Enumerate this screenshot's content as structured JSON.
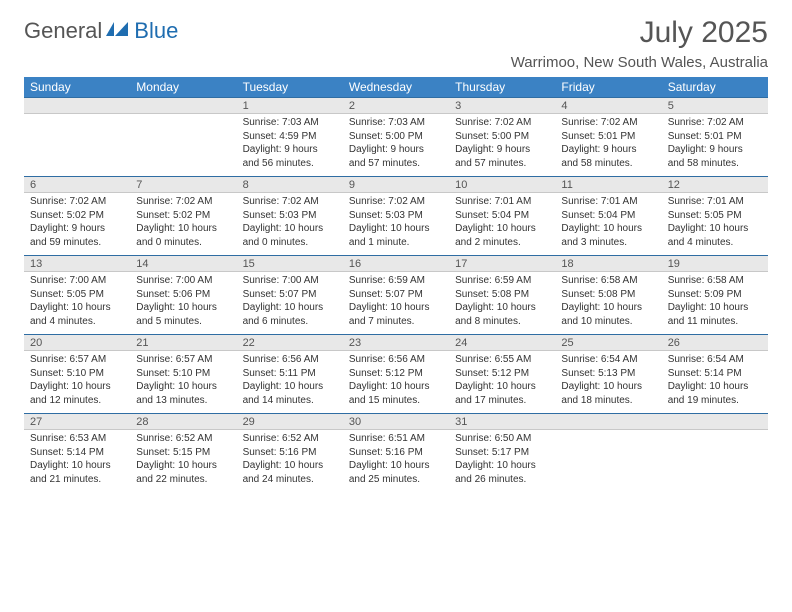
{
  "brand": {
    "part1": "General",
    "part2": "Blue"
  },
  "title": "July 2025",
  "location": "Warrimoo, New South Wales, Australia",
  "colors": {
    "header_blue": "#3b82c4",
    "border_blue": "#2f6da3",
    "daynum_gray": "#e8e8e8",
    "text_dark": "#333333",
    "text_gray": "#666666",
    "logo_blue": "#1f6db0"
  },
  "dayHeaders": [
    "Sunday",
    "Monday",
    "Tuesday",
    "Wednesday",
    "Thursday",
    "Friday",
    "Saturday"
  ],
  "weeks": [
    {
      "nums": [
        "",
        "",
        "1",
        "2",
        "3",
        "4",
        "5"
      ],
      "cells": [
        null,
        null,
        {
          "sunrise": "Sunrise: 7:03 AM",
          "sunset": "Sunset: 4:59 PM",
          "daylight": "Daylight: 9 hours and 56 minutes."
        },
        {
          "sunrise": "Sunrise: 7:03 AM",
          "sunset": "Sunset: 5:00 PM",
          "daylight": "Daylight: 9 hours and 57 minutes."
        },
        {
          "sunrise": "Sunrise: 7:02 AM",
          "sunset": "Sunset: 5:00 PM",
          "daylight": "Daylight: 9 hours and 57 minutes."
        },
        {
          "sunrise": "Sunrise: 7:02 AM",
          "sunset": "Sunset: 5:01 PM",
          "daylight": "Daylight: 9 hours and 58 minutes."
        },
        {
          "sunrise": "Sunrise: 7:02 AM",
          "sunset": "Sunset: 5:01 PM",
          "daylight": "Daylight: 9 hours and 58 minutes."
        }
      ]
    },
    {
      "nums": [
        "6",
        "7",
        "8",
        "9",
        "10",
        "11",
        "12"
      ],
      "cells": [
        {
          "sunrise": "Sunrise: 7:02 AM",
          "sunset": "Sunset: 5:02 PM",
          "daylight": "Daylight: 9 hours and 59 minutes."
        },
        {
          "sunrise": "Sunrise: 7:02 AM",
          "sunset": "Sunset: 5:02 PM",
          "daylight": "Daylight: 10 hours and 0 minutes."
        },
        {
          "sunrise": "Sunrise: 7:02 AM",
          "sunset": "Sunset: 5:03 PM",
          "daylight": "Daylight: 10 hours and 0 minutes."
        },
        {
          "sunrise": "Sunrise: 7:02 AM",
          "sunset": "Sunset: 5:03 PM",
          "daylight": "Daylight: 10 hours and 1 minute."
        },
        {
          "sunrise": "Sunrise: 7:01 AM",
          "sunset": "Sunset: 5:04 PM",
          "daylight": "Daylight: 10 hours and 2 minutes."
        },
        {
          "sunrise": "Sunrise: 7:01 AM",
          "sunset": "Sunset: 5:04 PM",
          "daylight": "Daylight: 10 hours and 3 minutes."
        },
        {
          "sunrise": "Sunrise: 7:01 AM",
          "sunset": "Sunset: 5:05 PM",
          "daylight": "Daylight: 10 hours and 4 minutes."
        }
      ]
    },
    {
      "nums": [
        "13",
        "14",
        "15",
        "16",
        "17",
        "18",
        "19"
      ],
      "cells": [
        {
          "sunrise": "Sunrise: 7:00 AM",
          "sunset": "Sunset: 5:05 PM",
          "daylight": "Daylight: 10 hours and 4 minutes."
        },
        {
          "sunrise": "Sunrise: 7:00 AM",
          "sunset": "Sunset: 5:06 PM",
          "daylight": "Daylight: 10 hours and 5 minutes."
        },
        {
          "sunrise": "Sunrise: 7:00 AM",
          "sunset": "Sunset: 5:07 PM",
          "daylight": "Daylight: 10 hours and 6 minutes."
        },
        {
          "sunrise": "Sunrise: 6:59 AM",
          "sunset": "Sunset: 5:07 PM",
          "daylight": "Daylight: 10 hours and 7 minutes."
        },
        {
          "sunrise": "Sunrise: 6:59 AM",
          "sunset": "Sunset: 5:08 PM",
          "daylight": "Daylight: 10 hours and 8 minutes."
        },
        {
          "sunrise": "Sunrise: 6:58 AM",
          "sunset": "Sunset: 5:08 PM",
          "daylight": "Daylight: 10 hours and 10 minutes."
        },
        {
          "sunrise": "Sunrise: 6:58 AM",
          "sunset": "Sunset: 5:09 PM",
          "daylight": "Daylight: 10 hours and 11 minutes."
        }
      ]
    },
    {
      "nums": [
        "20",
        "21",
        "22",
        "23",
        "24",
        "25",
        "26"
      ],
      "cells": [
        {
          "sunrise": "Sunrise: 6:57 AM",
          "sunset": "Sunset: 5:10 PM",
          "daylight": "Daylight: 10 hours and 12 minutes."
        },
        {
          "sunrise": "Sunrise: 6:57 AM",
          "sunset": "Sunset: 5:10 PM",
          "daylight": "Daylight: 10 hours and 13 minutes."
        },
        {
          "sunrise": "Sunrise: 6:56 AM",
          "sunset": "Sunset: 5:11 PM",
          "daylight": "Daylight: 10 hours and 14 minutes."
        },
        {
          "sunrise": "Sunrise: 6:56 AM",
          "sunset": "Sunset: 5:12 PM",
          "daylight": "Daylight: 10 hours and 15 minutes."
        },
        {
          "sunrise": "Sunrise: 6:55 AM",
          "sunset": "Sunset: 5:12 PM",
          "daylight": "Daylight: 10 hours and 17 minutes."
        },
        {
          "sunrise": "Sunrise: 6:54 AM",
          "sunset": "Sunset: 5:13 PM",
          "daylight": "Daylight: 10 hours and 18 minutes."
        },
        {
          "sunrise": "Sunrise: 6:54 AM",
          "sunset": "Sunset: 5:14 PM",
          "daylight": "Daylight: 10 hours and 19 minutes."
        }
      ]
    },
    {
      "nums": [
        "27",
        "28",
        "29",
        "30",
        "31",
        "",
        ""
      ],
      "cells": [
        {
          "sunrise": "Sunrise: 6:53 AM",
          "sunset": "Sunset: 5:14 PM",
          "daylight": "Daylight: 10 hours and 21 minutes."
        },
        {
          "sunrise": "Sunrise: 6:52 AM",
          "sunset": "Sunset: 5:15 PM",
          "daylight": "Daylight: 10 hours and 22 minutes."
        },
        {
          "sunrise": "Sunrise: 6:52 AM",
          "sunset": "Sunset: 5:16 PM",
          "daylight": "Daylight: 10 hours and 24 minutes."
        },
        {
          "sunrise": "Sunrise: 6:51 AM",
          "sunset": "Sunset: 5:16 PM",
          "daylight": "Daylight: 10 hours and 25 minutes."
        },
        {
          "sunrise": "Sunrise: 6:50 AM",
          "sunset": "Sunset: 5:17 PM",
          "daylight": "Daylight: 10 hours and 26 minutes."
        },
        null,
        null
      ]
    }
  ]
}
